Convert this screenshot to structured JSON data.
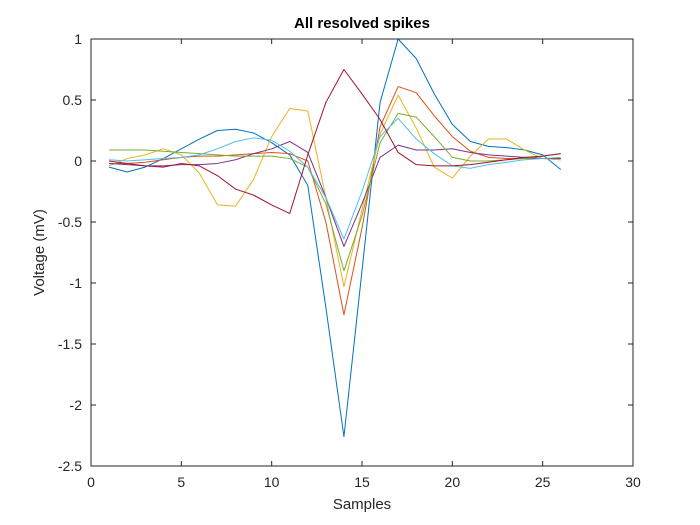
{
  "chart_data": {
    "type": "line",
    "title": "All resolved spikes",
    "xlabel": "Samples",
    "ylabel": "Voltage (mV)",
    "xlim": [
      0,
      30
    ],
    "ylim": [
      -2.5,
      1
    ],
    "xticks": [
      0,
      5,
      10,
      15,
      20,
      25,
      30
    ],
    "yticks": [
      -2.5,
      -2,
      -1.5,
      -1,
      -0.5,
      0,
      0.5,
      1
    ],
    "xtick_labels": [
      "0",
      "5",
      "10",
      "15",
      "20",
      "25",
      "30"
    ],
    "ytick_labels": [
      "-2.5",
      "-2",
      "-1.5",
      "-1",
      "-0.5",
      "0",
      "0.5",
      "1"
    ],
    "grid": false,
    "legend": false,
    "x": [
      1,
      2,
      3,
      4,
      5,
      6,
      7,
      8,
      9,
      10,
      11,
      12,
      13,
      14,
      15,
      16,
      17,
      18,
      19,
      20,
      21,
      22,
      23,
      24,
      25,
      26
    ],
    "series": [
      {
        "color": "#0072BD",
        "values": [
          -0.05,
          -0.09,
          -0.05,
          0.02,
          0.1,
          0.18,
          0.25,
          0.26,
          0.23,
          0.15,
          0.05,
          -0.2,
          -1.2,
          -2.26,
          -0.9,
          0.48,
          1.0,
          0.84,
          0.55,
          0.3,
          0.16,
          0.12,
          0.11,
          0.09,
          0.05,
          -0.07
        ]
      },
      {
        "color": "#D95319",
        "values": [
          -0.02,
          -0.02,
          -0.01,
          0.01,
          0.03,
          0.04,
          0.04,
          0.05,
          0.06,
          0.07,
          0.06,
          0.0,
          -0.5,
          -1.26,
          -0.55,
          0.28,
          0.61,
          0.56,
          0.37,
          0.2,
          0.08,
          0.03,
          0.02,
          0.02,
          0.02,
          0.01
        ]
      },
      {
        "color": "#EDB120",
        "values": [
          -0.04,
          0.02,
          0.05,
          0.1,
          0.05,
          -0.1,
          -0.36,
          -0.37,
          -0.15,
          0.2,
          0.43,
          0.41,
          -0.3,
          -1.03,
          -0.4,
          0.22,
          0.54,
          0.27,
          -0.05,
          -0.14,
          0.04,
          0.18,
          0.18,
          0.09,
          0.02,
          0.01
        ]
      },
      {
        "color": "#7E2F8E",
        "values": [
          -0.02,
          -0.03,
          -0.04,
          -0.04,
          -0.03,
          -0.03,
          -0.02,
          0.01,
          0.06,
          0.1,
          0.16,
          0.07,
          -0.3,
          -0.7,
          -0.35,
          0.03,
          0.13,
          0.09,
          0.09,
          0.1,
          0.07,
          0.05,
          0.04,
          0.03,
          0.02,
          0.02
        ]
      },
      {
        "color": "#77AC30",
        "values": [
          0.09,
          0.09,
          0.09,
          0.08,
          0.07,
          0.06,
          0.05,
          0.04,
          0.04,
          0.04,
          0.02,
          -0.05,
          -0.35,
          -0.9,
          -0.45,
          0.15,
          0.39,
          0.36,
          0.2,
          0.03,
          0.0,
          0.0,
          0.01,
          0.02,
          0.04,
          0.06
        ]
      },
      {
        "color": "#4DBEEE",
        "values": [
          0.01,
          0.0,
          0.01,
          0.02,
          0.03,
          0.05,
          0.1,
          0.16,
          0.19,
          0.17,
          0.08,
          -0.05,
          -0.3,
          -0.64,
          -0.25,
          0.2,
          0.35,
          0.18,
          0.06,
          -0.04,
          -0.06,
          -0.03,
          -0.01,
          0.01,
          0.02,
          0.03
        ]
      },
      {
        "color": "#A2142F",
        "values": [
          0.0,
          -0.02,
          -0.04,
          -0.05,
          -0.02,
          -0.04,
          -0.12,
          -0.23,
          -0.28,
          -0.36,
          -0.43,
          0.05,
          0.48,
          0.75,
          0.55,
          0.34,
          0.07,
          -0.03,
          -0.04,
          -0.04,
          -0.03,
          -0.01,
          0.01,
          0.03,
          0.04,
          0.06
        ]
      }
    ]
  }
}
